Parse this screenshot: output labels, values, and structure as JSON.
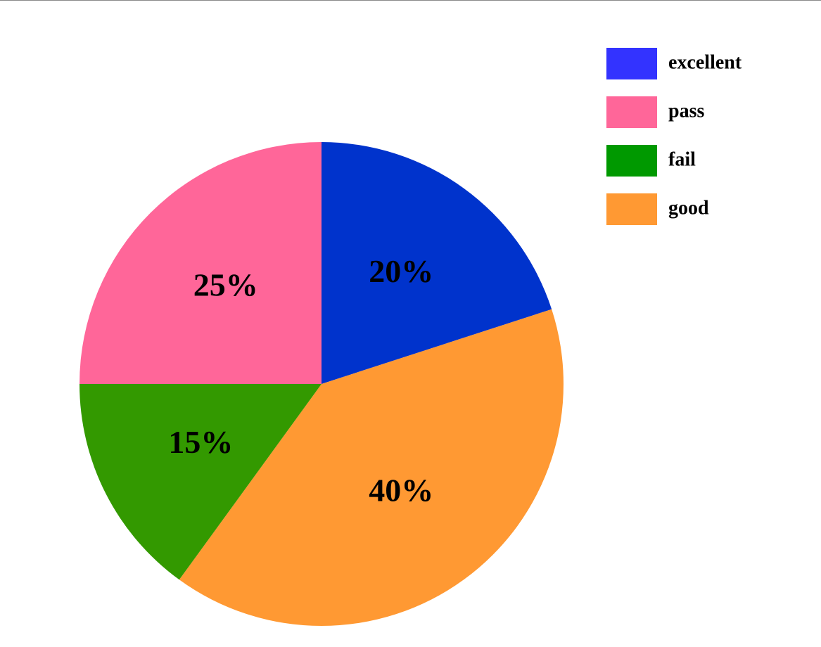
{
  "chart_data": {
    "type": "pie",
    "title": "",
    "slices": [
      {
        "name": "excellent",
        "value": 20,
        "label": "20%",
        "color": "#0033cc",
        "legend_color": "#3333ff"
      },
      {
        "name": "good",
        "value": 40,
        "label": "40%",
        "color": "#ff9933",
        "legend_color": "#ff9933"
      },
      {
        "name": "fail",
        "value": 15,
        "label": "15%",
        "color": "#339900",
        "legend_color": "#009900"
      },
      {
        "name": "pass",
        "value": 25,
        "label": "25%",
        "color": "#ff6699",
        "legend_color": "#ff6699"
      }
    ],
    "legend": {
      "position": "top-right",
      "items": [
        "excellent",
        "pass",
        "fail",
        "good"
      ]
    }
  }
}
